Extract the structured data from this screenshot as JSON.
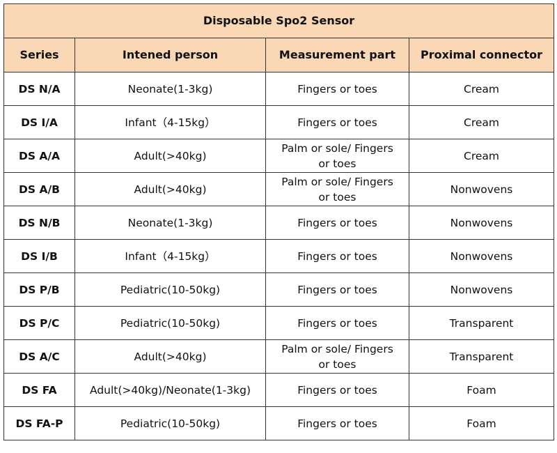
{
  "header": {
    "title": "Disposable Spo2 Sensor"
  },
  "table": {
    "columns": [
      "Series",
      "Intened person",
      "Measurement part",
      "Proximal connector"
    ],
    "rows": [
      [
        "DS N/A",
        "Neonate(1-3kg)",
        "Fingers or toes",
        "Cream"
      ],
      [
        "DS I/A",
        "Infant（4-15kg）",
        "Fingers or toes",
        "Cream"
      ],
      [
        "DS A/A",
        "Adult(>40kg)",
        "Palm or sole/ Fingers or toes",
        "Cream"
      ],
      [
        "DS A/B",
        "Adult(>40kg)",
        "Palm or sole/ Fingers or toes",
        "Nonwovens"
      ],
      [
        "DS N/B",
        "Neonate(1-3kg)",
        "Fingers or toes",
        "Nonwovens"
      ],
      [
        "DS I/B",
        "Infant（4-15kg）",
        "Fingers or toes",
        "Nonwovens"
      ],
      [
        "DS P/B",
        "Pediatric(10-50kg)",
        "Fingers or toes",
        "Nonwovens"
      ],
      [
        "DS P/C",
        "Pediatric(10-50kg)",
        "Fingers or toes",
        "Transparent"
      ],
      [
        "DS A/C",
        "Adult(>40kg)",
        "Palm or sole/ Fingers or toes",
        "Transparent"
      ],
      [
        "DS FA",
        "Adult(>40kg)/Neonate(1-3kg)",
        "Fingers or toes",
        "Foam"
      ],
      [
        "DS FA-P",
        "Pediatric(10-50kg)",
        "Fingers or toes",
        "Foam"
      ]
    ]
  }
}
